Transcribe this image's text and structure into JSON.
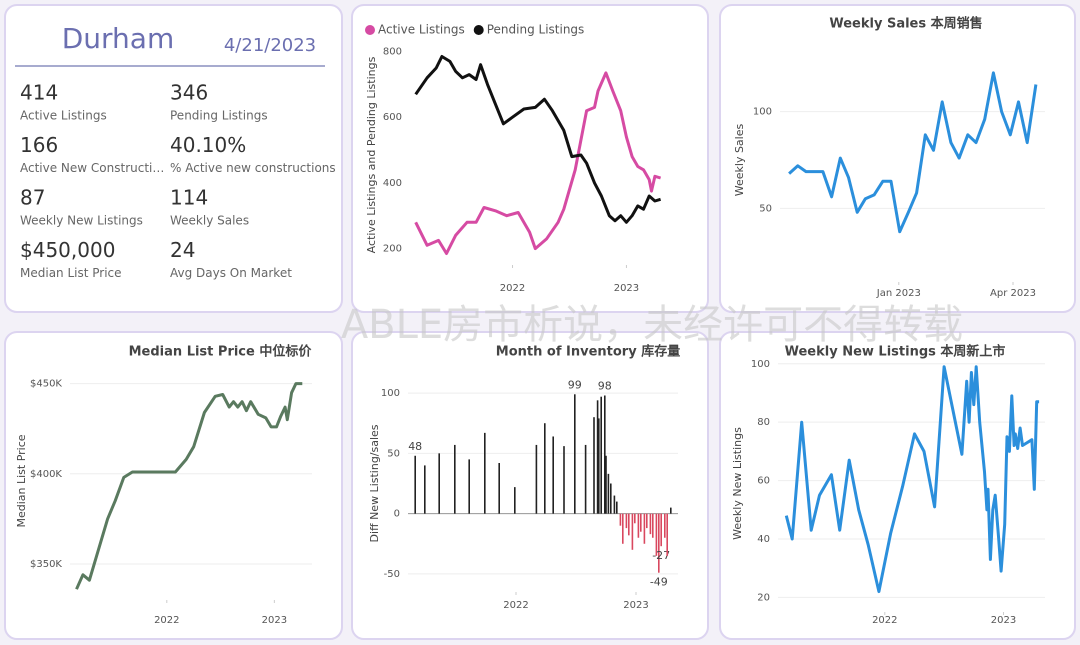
{
  "header": {
    "title": "Durham",
    "date": "4/21/2023"
  },
  "kpis": [
    {
      "value": "414",
      "label": "Active Listings"
    },
    {
      "value": "346",
      "label": "Pending Listings"
    },
    {
      "value": "166",
      "label": "Active New Constructi…"
    },
    {
      "value": "40.10%",
      "label": "% Active new constructions"
    },
    {
      "value": "87",
      "label": "Weekly New Listings"
    },
    {
      "value": "114",
      "label": "Weekly Sales"
    },
    {
      "value": "$450,000",
      "label": "Median List Price"
    },
    {
      "value": "24",
      "label": "Avg Days On Market"
    }
  ],
  "watermark": "ABLE房市析说，未经许可不得转载",
  "chart_data": [
    {
      "type": "line",
      "ylabel": "Active Listings and Pending Listings",
      "legend": "top-left",
      "grid": false,
      "xlim": [
        2021.1,
        2023.4
      ],
      "xticks": [
        2022,
        2023
      ],
      "ylim": [
        150,
        820
      ],
      "yticks": [
        200,
        400,
        600,
        800
      ],
      "series": [
        {
          "name": "Active Listings",
          "color": "#d64ba3",
          "x": [
            2021.15,
            2021.25,
            2021.35,
            2021.42,
            2021.5,
            2021.6,
            2021.68,
            2021.75,
            2021.85,
            2021.95,
            2022.05,
            2022.15,
            2022.2,
            2022.3,
            2022.4,
            2022.45,
            2022.55,
            2022.6,
            2022.65,
            2022.72,
            2022.75,
            2022.82,
            2022.88,
            2022.95,
            2023.0,
            2023.05,
            2023.1,
            2023.15,
            2023.2,
            2023.22,
            2023.25,
            2023.3
          ],
          "values": [
            280,
            210,
            225,
            185,
            240,
            280,
            280,
            325,
            315,
            300,
            310,
            250,
            200,
            230,
            280,
            320,
            440,
            530,
            620,
            630,
            680,
            735,
            680,
            620,
            540,
            480,
            450,
            440,
            410,
            375,
            420,
            415
          ]
        },
        {
          "name": "Pending Listings",
          "color": "#111111",
          "x": [
            2021.15,
            2021.25,
            2021.33,
            2021.38,
            2021.45,
            2021.5,
            2021.56,
            2021.62,
            2021.68,
            2021.72,
            2021.78,
            2021.85,
            2021.92,
            2022.0,
            2022.1,
            2022.2,
            2022.28,
            2022.35,
            2022.45,
            2022.52,
            2022.6,
            2022.65,
            2022.72,
            2022.78,
            2022.85,
            2022.9,
            2022.95,
            2023.0,
            2023.05,
            2023.1,
            2023.15,
            2023.2,
            2023.25,
            2023.3
          ],
          "values": [
            670,
            720,
            750,
            785,
            770,
            740,
            720,
            730,
            715,
            760,
            700,
            640,
            580,
            600,
            625,
            630,
            655,
            620,
            560,
            480,
            485,
            460,
            400,
            360,
            300,
            285,
            300,
            280,
            300,
            330,
            320,
            360,
            345,
            350
          ]
        }
      ]
    },
    {
      "type": "line",
      "title": "Weekly Sales 本周销售",
      "ylabel": "Weekly Sales",
      "grid": true,
      "color": "#2b8fdc",
      "xlim": [
        2022.74,
        2023.32
      ],
      "xticks": [
        {
          "value": 2023.0,
          "label": "Jan 2023"
        },
        {
          "value": 2023.25,
          "label": "Apr 2023"
        }
      ],
      "ylim": [
        12,
        138
      ],
      "yticks": [
        50,
        100
      ],
      "x": [
        2022.76,
        2022.779,
        2022.797,
        2022.816,
        2022.834,
        2022.853,
        2022.872,
        2022.89,
        2022.909,
        2022.927,
        2022.946,
        2022.965,
        2022.983,
        2023.002,
        2023.021,
        2023.039,
        2023.058,
        2023.076,
        2023.095,
        2023.114,
        2023.132,
        2023.151,
        2023.169,
        2023.188,
        2023.207,
        2023.225,
        2023.244,
        2023.262,
        2023.281,
        2023.3
      ],
      "values": [
        68,
        72,
        69,
        69,
        69,
        56,
        76,
        66,
        48,
        55,
        57,
        64,
        64,
        38,
        48,
        58,
        88,
        80,
        105,
        84,
        76,
        88,
        84,
        96,
        120,
        100,
        88,
        105,
        84,
        114
      ]
    },
    {
      "type": "line",
      "title": "Median List Price  中位标价",
      "ylabel": "Median List Price",
      "grid": true,
      "color": "#5a7a5f",
      "xlim": [
        2021.1,
        2023.35
      ],
      "xticks": [
        2022,
        2023
      ],
      "ylim": [
        330000,
        462000
      ],
      "yticks": [
        {
          "value": 350000,
          "label": "$350K"
        },
        {
          "value": 400000,
          "label": "$400K"
        },
        {
          "value": 450000,
          "label": "$450K"
        }
      ],
      "x": [
        2021.16,
        2021.22,
        2021.28,
        2021.35,
        2021.45,
        2021.52,
        2021.6,
        2021.68,
        2021.8,
        2021.9,
        2022.08,
        2022.18,
        2022.25,
        2022.35,
        2022.45,
        2022.52,
        2022.58,
        2022.62,
        2022.66,
        2022.7,
        2022.74,
        2022.78,
        2022.85,
        2022.92,
        2022.97,
        2023.02,
        2023.06,
        2023.1,
        2023.12,
        2023.16,
        2023.2,
        2023.26
      ],
      "values": [
        336000,
        344000,
        341000,
        355000,
        375000,
        385000,
        398000,
        401000,
        401000,
        401000,
        401000,
        408000,
        415000,
        434000,
        443000,
        444000,
        437000,
        440000,
        437000,
        440000,
        435000,
        440000,
        433000,
        431000,
        426000,
        426000,
        432000,
        437000,
        430000,
        445000,
        450000,
        450000
      ]
    },
    {
      "type": "bar",
      "title": "Month of Inventory 库存量",
      "ylabel": "Diff New Listing/sales",
      "grid": true,
      "color": "#222222",
      "negative_color": "#d9485f",
      "xlim": [
        2021.1,
        2023.35
      ],
      "xticks": [
        2022,
        2023
      ],
      "ylim": [
        -65,
        115
      ],
      "yticks": [
        -50,
        0,
        50,
        100
      ],
      "x": [
        2021.16,
        2021.24,
        2021.36,
        2021.49,
        2021.61,
        2021.74,
        2021.86,
        2021.99,
        2022.17,
        2022.24,
        2022.31,
        2022.4,
        2022.49,
        2022.58,
        2022.65,
        2022.68,
        2022.69,
        2022.71,
        2022.74,
        2022.75,
        2022.77,
        2022.79,
        2022.82,
        2022.84,
        2022.87,
        2022.89,
        2022.92,
        2022.94,
        2022.97,
        2022.99,
        2023.02,
        2023.04,
        2023.07,
        2023.09,
        2023.12,
        2023.14,
        2023.17,
        2023.19,
        2023.21,
        2023.24,
        2023.26,
        2023.29
      ],
      "values": [
        48,
        40,
        50,
        57,
        45,
        67,
        42,
        22,
        57,
        75,
        64,
        56,
        99,
        57,
        80,
        94,
        79,
        97,
        98,
        48,
        33,
        25,
        15,
        10,
        -10,
        -25,
        -12,
        -18,
        -30,
        -8,
        -20,
        -15,
        -25,
        -12,
        -17,
        -20,
        -35,
        -49,
        -27,
        -20,
        -35,
        5
      ],
      "value_labels": [
        "48",
        null,
        null,
        null,
        null,
        null,
        null,
        null,
        null,
        null,
        null,
        null,
        "99",
        null,
        null,
        null,
        null,
        null,
        "98",
        null,
        null,
        null,
        null,
        null,
        null,
        null,
        null,
        null,
        null,
        null,
        null,
        null,
        null,
        null,
        null,
        null,
        null,
        "-49",
        "-27",
        null,
        null,
        null
      ]
    },
    {
      "type": "line",
      "title": "Weekly New Listings  本周新上市",
      "ylabel": "Weekly New Listings",
      "grid": true,
      "color": "#2b8fdc",
      "xlim": [
        2021.1,
        2023.35
      ],
      "xticks": [
        2022,
        2023
      ],
      "ylim": [
        15,
        103
      ],
      "yticks": [
        20,
        40,
        60,
        80,
        100
      ],
      "x": [
        2021.17,
        2021.22,
        2021.3,
        2021.38,
        2021.45,
        2021.55,
        2021.62,
        2021.7,
        2021.78,
        2021.86,
        2021.95,
        2022.05,
        2022.15,
        2022.25,
        2022.33,
        2022.42,
        2022.5,
        2022.57,
        2022.65,
        2022.69,
        2022.71,
        2022.73,
        2022.75,
        2022.77,
        2022.8,
        2022.84,
        2022.86,
        2022.87,
        2022.89,
        2022.91,
        2022.93,
        2022.96,
        2022.98,
        2023.01,
        2023.03,
        2023.05,
        2023.07,
        2023.09,
        2023.1,
        2023.12,
        2023.14,
        2023.16,
        2023.2,
        2023.24,
        2023.26,
        2023.28,
        2023.3
      ],
      "values": [
        48,
        40,
        80,
        43,
        55,
        62,
        43,
        67,
        50,
        38,
        22,
        42,
        58,
        76,
        70,
        51,
        99,
        85,
        69,
        94,
        80,
        97,
        86,
        99,
        80,
        63,
        50,
        57,
        33,
        50,
        55,
        40,
        29,
        45,
        75,
        70,
        89,
        72,
        76,
        71,
        78,
        72,
        73,
        74,
        57,
        87,
        87
      ]
    }
  ]
}
